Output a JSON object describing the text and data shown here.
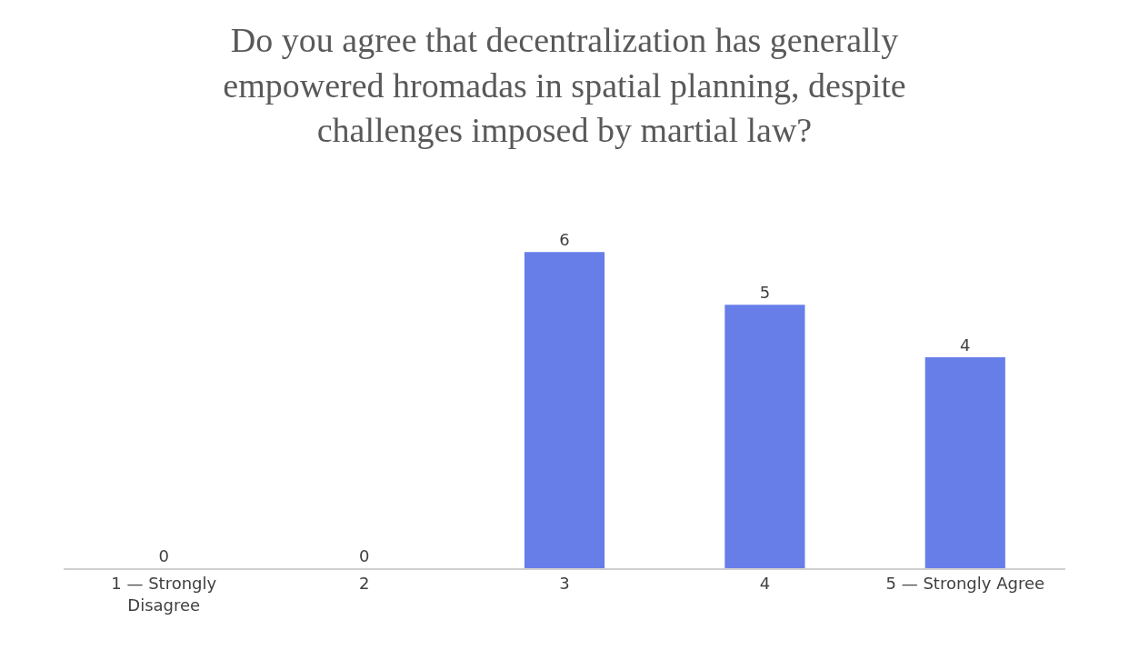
{
  "chart_data": {
    "type": "bar",
    "title": "Do you agree that decentralization has generally empowered hromadas in spatial planning, despite challenges imposed by martial law?",
    "categories": [
      "1 — Strongly Disagree",
      "2",
      "3",
      "4",
      "5 — Strongly Agree"
    ],
    "values": [
      0,
      0,
      6,
      5,
      4
    ],
    "color": "#677ee8",
    "data_labels": true,
    "legend": false
  }
}
